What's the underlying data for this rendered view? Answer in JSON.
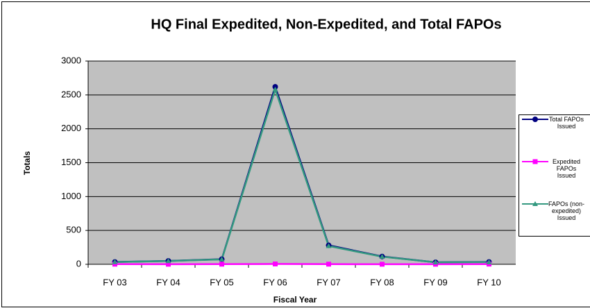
{
  "chart_data": {
    "type": "line",
    "title": "HQ Final Expedited, Non-Expedited, and Total FAPOs",
    "x_label": "Fiscal Year",
    "y_label": "Totals",
    "categories": [
      "FY 03",
      "FY 04",
      "FY 05",
      "FY 06",
      "FY 07",
      "FY 08",
      "FY 09",
      "FY 10"
    ],
    "series": [
      {
        "name": "Total FAPOs Issued",
        "color": "#000080",
        "marker": "circle",
        "values": [
          35,
          50,
          75,
          2620,
          280,
          115,
          30,
          35
        ]
      },
      {
        "name": "Expedited FAPOs Issued",
        "color": "#ff00ff",
        "marker": "square",
        "values": [
          2,
          1,
          2,
          5,
          2,
          1,
          1,
          3
        ]
      },
      {
        "name": "FAPOs (non-expedited) Issued",
        "color": "#339980",
        "marker": "triangle",
        "values": [
          33,
          49,
          73,
          2580,
          270,
          112,
          29,
          32
        ]
      }
    ],
    "ylim": [
      0,
      3000
    ],
    "yticks": [
      0,
      500,
      1000,
      1500,
      2000,
      2500,
      3000
    ],
    "grid": true,
    "legend": "right"
  }
}
